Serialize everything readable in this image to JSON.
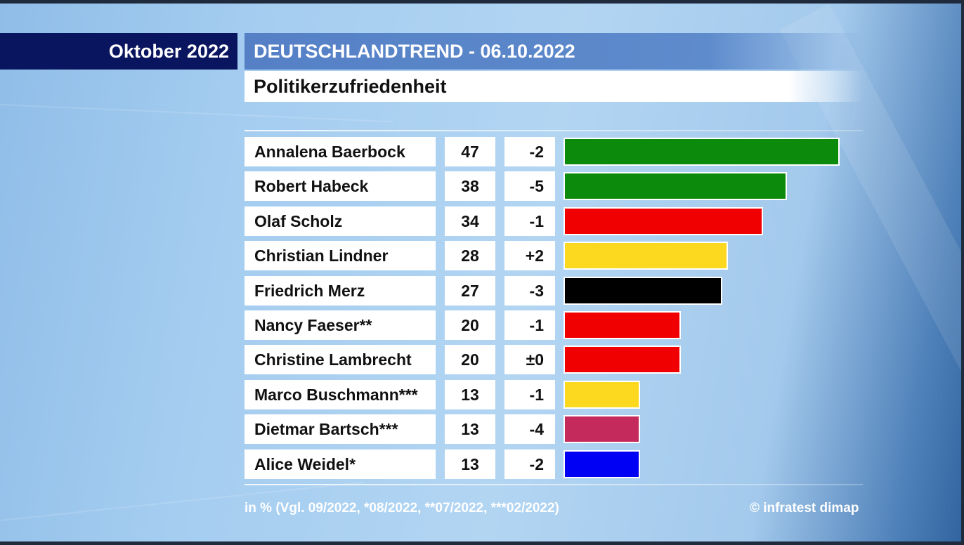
{
  "header": {
    "month": "Oktober 2022",
    "trend_title": "DEUTSCHLANDTREND - 06.10.2022",
    "subtitle": "Politikerzufriedenheit"
  },
  "chart_data": {
    "type": "bar",
    "orientation": "horizontal",
    "unit": "in %",
    "categories": [
      "Annalena Baerbock",
      "Robert Habeck",
      "Olaf Scholz",
      "Christian Lindner",
      "Friedrich Merz",
      "Nancy Faeser**",
      "Christine Lambrecht",
      "Marco Buschmann***",
      "Dietmar Bartsch***",
      "Alice Weidel*"
    ],
    "values": [
      47,
      38,
      34,
      28,
      27,
      20,
      20,
      13,
      13,
      13
    ],
    "value_labels": [
      "47",
      "38",
      "34",
      "28",
      "27",
      "20",
      "20",
      "13",
      "13",
      "13"
    ],
    "changes": [
      "-2",
      "-5",
      "-1",
      "+2",
      "-3",
      "-1",
      "±0",
      "-1",
      "-4",
      "-2"
    ],
    "bar_colors": [
      "#0b8a0b",
      "#0b8a0b",
      "#f00000",
      "#fcd81e",
      "#000000",
      "#f00000",
      "#f00000",
      "#fcd81e",
      "#c52a5c",
      "#0000f5"
    ],
    "xlim": [
      0,
      47
    ]
  },
  "footer": {
    "note": "in % (Vgl. 09/2022, *08/2022, **07/2022, ***02/2022)",
    "source": "© infratest dimap"
  }
}
